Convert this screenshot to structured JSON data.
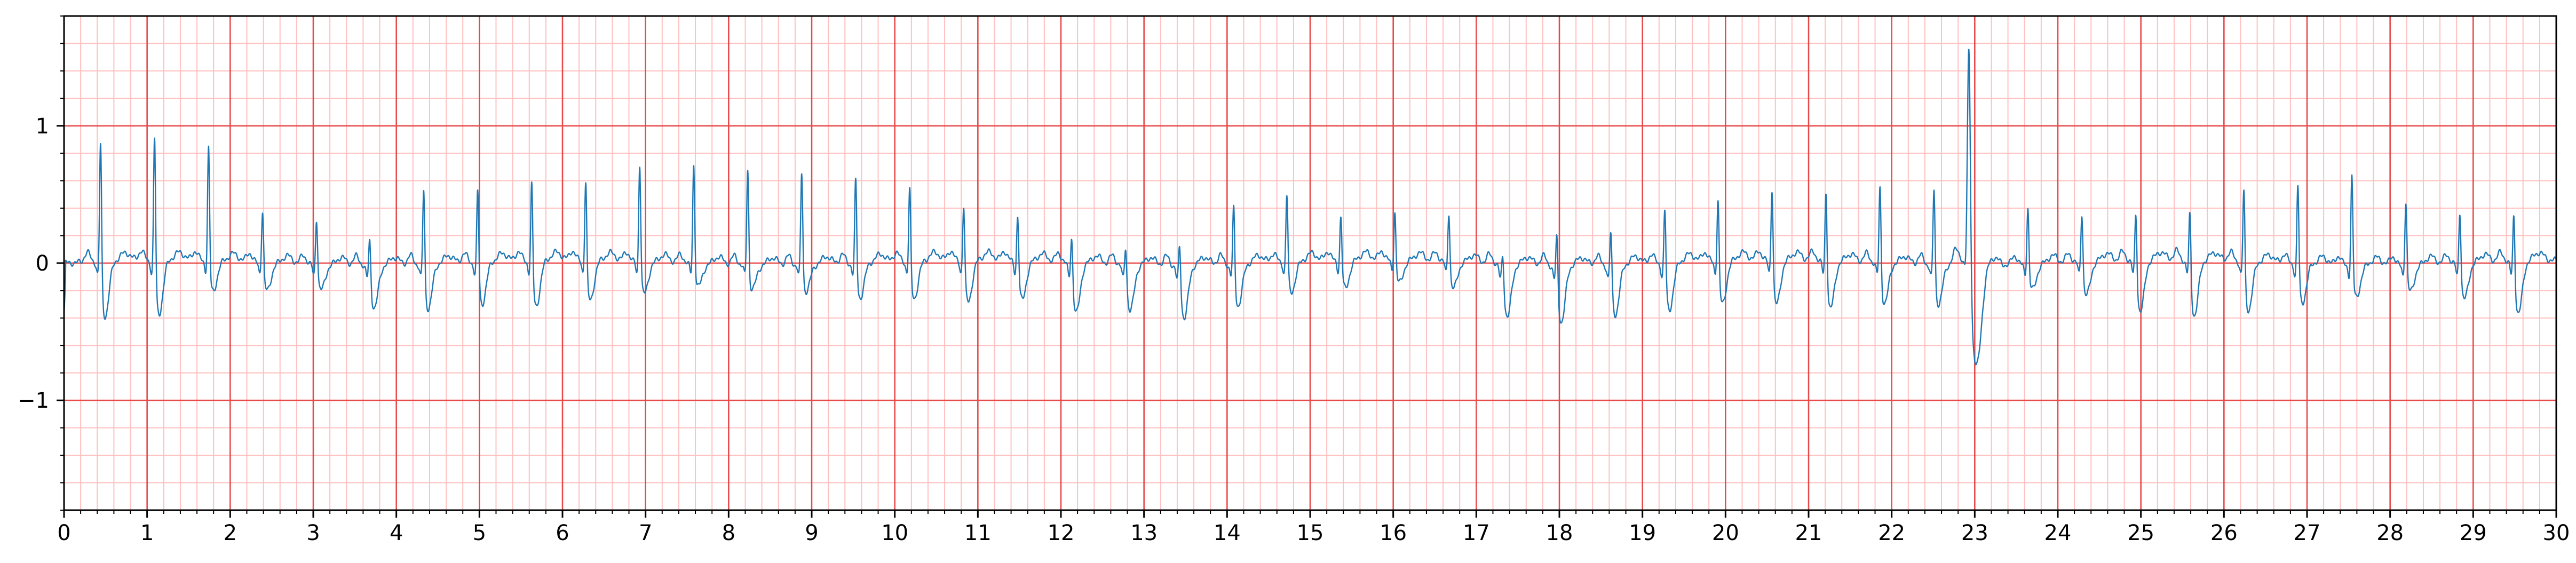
{
  "chart_data": {
    "type": "line",
    "title": "",
    "xlabel": "",
    "ylabel": "",
    "xlim": [
      0,
      30
    ],
    "ylim": [
      -1.8,
      1.8
    ],
    "x_ticks": [
      "0",
      "1",
      "2",
      "3",
      "4",
      "5",
      "6",
      "7",
      "8",
      "9",
      "10",
      "11",
      "12",
      "13",
      "14",
      "15",
      "16",
      "17",
      "18",
      "19",
      "20",
      "21",
      "22",
      "23",
      "24",
      "25",
      "26",
      "27",
      "28",
      "29",
      "30"
    ],
    "y_ticks": [
      {
        "value": 1,
        "label": "1"
      },
      {
        "value": 0,
        "label": "0"
      },
      {
        "value": -1,
        "label": "−1"
      }
    ],
    "grid": {
      "major_x": 1,
      "minor_x": 0.2,
      "major_y": 1,
      "minor_y": 0.2,
      "color_major": "#e84a4a",
      "color_minor": "#ffc0c0"
    },
    "line_color": "#1f77b4",
    "series": [
      {
        "beat_times": [
          0.44,
          1.09,
          1.74,
          2.39,
          3.04,
          3.68,
          4.33,
          4.98,
          5.63,
          6.28,
          6.93,
          7.58,
          8.23,
          8.88,
          9.53,
          10.18,
          10.83,
          11.48,
          12.13,
          12.78,
          13.43,
          14.08,
          14.72,
          15.37,
          16.02,
          16.67,
          17.32,
          17.97,
          18.62,
          19.27,
          19.91,
          20.56,
          21.21,
          21.86,
          22.51,
          22.93,
          23.64,
          24.29,
          24.94,
          25.59,
          26.24,
          26.89,
          27.54,
          28.19,
          28.84,
          29.49
        ],
        "beat_peaks": [
          1.04,
          1.07,
          0.93,
          0.47,
          0.42,
          0.33,
          0.69,
          0.66,
          0.71,
          0.71,
          0.82,
          0.8,
          0.78,
          0.76,
          0.72,
          0.65,
          0.53,
          0.46,
          0.35,
          0.28,
          0.31,
          0.55,
          0.59,
          0.41,
          0.43,
          0.45,
          0.23,
          0.4,
          0.4,
          0.54,
          0.59,
          0.67,
          0.66,
          0.69,
          0.68,
          1.8,
          0.5,
          0.47,
          0.51,
          0.52,
          0.68,
          0.7,
          0.76,
          0.55,
          0.5,
          0.51
        ],
        "beat_troughs": [
          -0.4,
          -0.39,
          -0.22,
          -0.2,
          -0.18,
          -0.31,
          -0.32,
          -0.3,
          -0.33,
          -0.29,
          -0.23,
          -0.16,
          -0.17,
          -0.19,
          -0.25,
          -0.27,
          -0.3,
          -0.28,
          -0.36,
          -0.33,
          -0.38,
          -0.3,
          -0.22,
          -0.2,
          -0.16,
          -0.19,
          -0.38,
          -0.41,
          -0.36,
          -0.34,
          -0.31,
          -0.32,
          -0.34,
          -0.29,
          -0.28,
          -0.73,
          -0.18,
          -0.24,
          -0.37,
          -0.4,
          -0.35,
          -0.28,
          -0.23,
          -0.19,
          -0.26,
          -0.38
        ]
      }
    ]
  }
}
